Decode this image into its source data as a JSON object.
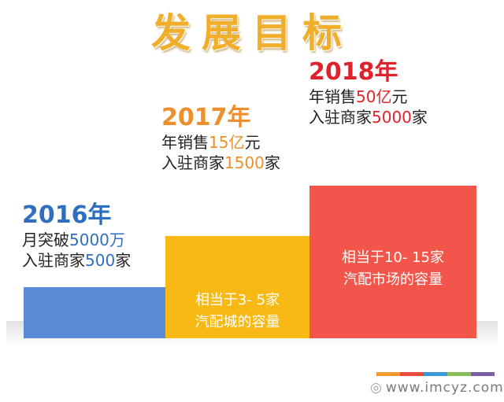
{
  "title": "发展目标",
  "chart_data": {
    "type": "bar",
    "categories": [
      "2016年",
      "2017年",
      "2018年"
    ],
    "values": [
      1,
      2,
      3
    ],
    "colors": [
      "#5b8bd6",
      "#f9b915",
      "#f2564a"
    ],
    "accent_colors": {
      "year_2016": "#2e6fbf",
      "year_2017": "#ed8f2a",
      "year_2018": "#e0232b"
    },
    "bar_labels": [
      [],
      [
        "相当于3- 5家",
        "汽配城的容量"
      ],
      [
        "相当于10- 15家",
        "汽配市场的容量"
      ]
    ],
    "annotations": [
      {
        "year": "2016年",
        "lines": [
          [
            {
              "text": "月突破",
              "hl": false
            },
            {
              "text": "5000万",
              "hl": true
            }
          ],
          [
            {
              "text": "入驻商家",
              "hl": false
            },
            {
              "text": "500",
              "hl": true
            },
            {
              "text": "家",
              "hl": false
            }
          ]
        ]
      },
      {
        "year": "2017年",
        "lines": [
          [
            {
              "text": "年销售",
              "hl": false
            },
            {
              "text": "15亿",
              "hl": true
            },
            {
              "text": "元",
              "hl": false
            }
          ],
          [
            {
              "text": "入驻商家",
              "hl": false
            },
            {
              "text": "1500",
              "hl": true
            },
            {
              "text": "家",
              "hl": false
            }
          ]
        ]
      },
      {
        "year": "2018年",
        "lines": [
          [
            {
              "text": "年销售",
              "hl": false
            },
            {
              "text": "50亿",
              "hl": true
            },
            {
              "text": "元",
              "hl": false
            }
          ],
          [
            {
              "text": "入驻商家",
              "hl": false
            },
            {
              "text": "5000",
              "hl": true
            },
            {
              "text": "家",
              "hl": false
            }
          ]
        ]
      }
    ]
  },
  "footer": {
    "url": "www.imcyz.com",
    "strip_colors": [
      "#f29a2e",
      "#e94b3c",
      "#3a9ad9",
      "#88c057",
      "#7b5ea7"
    ]
  }
}
